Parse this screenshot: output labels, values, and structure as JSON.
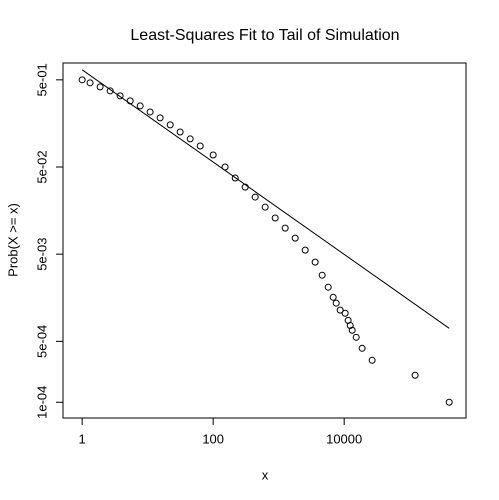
{
  "chart_data": {
    "type": "scatter",
    "title": "Least-Squares Fit to Tail of Simulation",
    "x_label": "x",
    "y_label": "Prob(X >= x)",
    "log_x": true,
    "log_y": true,
    "color": "#000000",
    "marker": "open-circle",
    "x": [
      1,
      1.32,
      1.88,
      2.68,
      3.8,
      5.41,
      7.68,
      10.9,
      15.5,
      22.1,
      31.3,
      44.6,
      63.4,
      100,
      152,
      217,
      308,
      438,
      622,
      885,
      1257,
      1786,
      2541,
      3606,
      4613,
      5700,
      6790,
      7550,
      8690,
      10350,
      11500,
      12360,
      13250,
      15250,
      18800,
      26700,
      121000,
      401000
    ],
    "values": [
      0.5,
      0.462,
      0.415,
      0.374,
      0.327,
      0.287,
      0.251,
      0.214,
      0.183,
      0.152,
      0.126,
      0.105,
      0.0871,
      0.0687,
      0.05,
      0.0374,
      0.0294,
      0.0226,
      0.0173,
      0.013,
      0.00995,
      0.00764,
      0.00556,
      0.00405,
      0.00287,
      0.00209,
      0.0016,
      0.00137,
      0.00114,
      0.00105,
      0.00087,
      0.00076,
      0.00067,
      0.000556,
      0.000416,
      0.000303,
      0.000204,
      0.0001
    ],
    "fit_line": {
      "x": [
        1,
        401000
      ],
      "y": [
        0.652,
        0.000705
      ]
    },
    "xlim": [
      0.51,
      724000
    ],
    "ylim": [
      0.78,
      6.6e-05
    ],
    "xticks": [
      1,
      100,
      10000
    ],
    "yticks": [
      {
        "value": 0.5,
        "label": "5e-01"
      },
      {
        "value": 0.05,
        "label": "5e-02"
      },
      {
        "value": 0.005,
        "label": "5e-03"
      },
      {
        "value": 0.0005,
        "label": "5e-04"
      },
      {
        "value": 0.0001,
        "label": "1e-04"
      }
    ],
    "grid": false
  }
}
